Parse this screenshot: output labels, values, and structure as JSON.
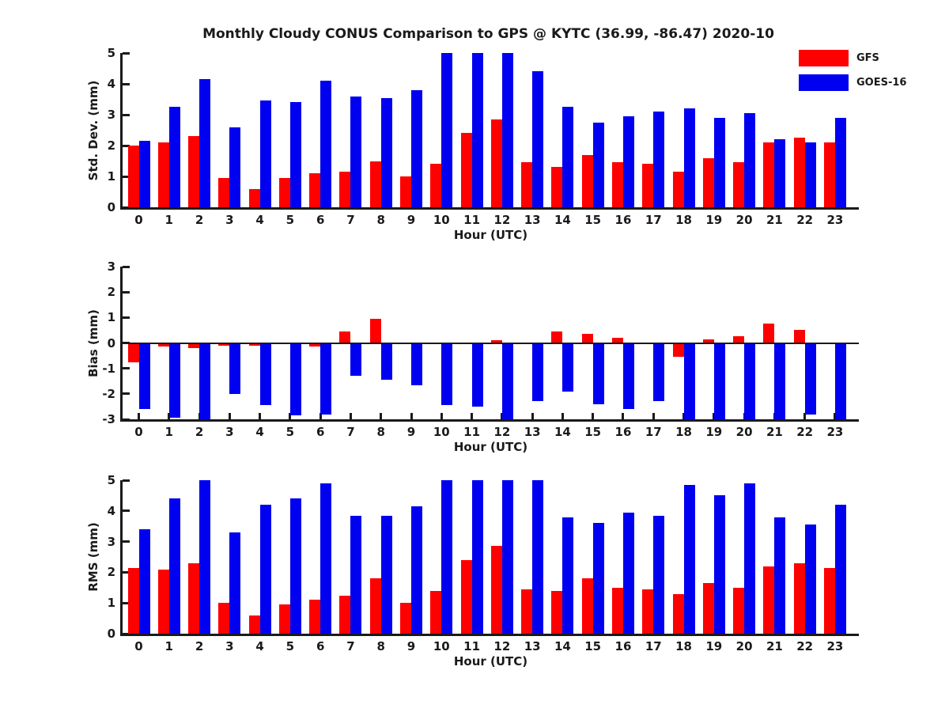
{
  "title": "Monthly Cloudy CONUS Comparison to GPS @ KYTC (36.99, -86.47) 2020-10",
  "colors": {
    "gfs": "#ff0000",
    "goes16": "#0000f0",
    "axis": "#1a1a1a"
  },
  "legend": {
    "items": [
      {
        "label": "GFS",
        "color": "#ff0000"
      },
      {
        "label": "GOES-16",
        "color": "#0000f0"
      }
    ]
  },
  "chart_data": [
    {
      "type": "bar",
      "title": "",
      "xlabel": "Hour (UTC)",
      "ylabel": "Std. Dev. (mm)",
      "ylim": [
        0,
        5
      ],
      "yticks": [
        0,
        1,
        2,
        3,
        4,
        5
      ],
      "grid": false,
      "legend_position": "upper-right-outside",
      "categories": [
        "0",
        "1",
        "2",
        "3",
        "4",
        "5",
        "6",
        "7",
        "8",
        "9",
        "10",
        "11",
        "12",
        "13",
        "14",
        "15",
        "16",
        "17",
        "18",
        "19",
        "20",
        "21",
        "22",
        "23"
      ],
      "series": [
        {
          "name": "GFS",
          "values": [
            2.0,
            2.1,
            2.3,
            0.95,
            0.6,
            0.95,
            1.1,
            1.15,
            1.5,
            1.0,
            1.4,
            2.4,
            2.85,
            1.45,
            1.3,
            1.7,
            1.45,
            1.4,
            1.15,
            1.6,
            1.45,
            2.1,
            2.25,
            2.1
          ]
        },
        {
          "name": "GOES-16",
          "values": [
            2.15,
            3.25,
            4.15,
            2.6,
            3.45,
            3.4,
            4.1,
            3.6,
            3.55,
            3.8,
            5.0,
            5.0,
            5.0,
            4.4,
            3.25,
            2.75,
            2.95,
            3.1,
            3.2,
            2.9,
            3.05,
            2.2,
            2.1,
            2.9
          ]
        }
      ]
    },
    {
      "type": "bar",
      "title": "",
      "xlabel": "Hour (UTC)",
      "ylabel": "Bias (mm)",
      "ylim": [
        -3,
        3
      ],
      "yticks": [
        3,
        2,
        1,
        0,
        -1,
        -2,
        -3
      ],
      "grid": false,
      "categories": [
        "0",
        "1",
        "2",
        "3",
        "4",
        "5",
        "6",
        "7",
        "8",
        "9",
        "10",
        "11",
        "12",
        "13",
        "14",
        "15",
        "16",
        "17",
        "18",
        "19",
        "20",
        "21",
        "22",
        "23"
      ],
      "series": [
        {
          "name": "GFS",
          "values": [
            -0.75,
            -0.15,
            -0.2,
            -0.1,
            -0.1,
            0,
            -0.15,
            0.45,
            0.95,
            0,
            -0.05,
            0,
            0.1,
            0,
            0.45,
            0.35,
            0.2,
            -0.05,
            -0.55,
            0.15,
            0.25,
            0.75,
            0.5,
            -0.05
          ]
        },
        {
          "name": "GOES-16",
          "values": [
            -2.6,
            -2.95,
            -3.0,
            -2.0,
            -2.45,
            -2.85,
            -2.8,
            -1.3,
            -1.45,
            -1.65,
            -2.45,
            -2.5,
            -3.0,
            -2.3,
            -1.9,
            -2.4,
            -2.6,
            -2.3,
            -3.0,
            -3.0,
            -3.0,
            -3.0,
            -2.8,
            -3.0
          ]
        }
      ]
    },
    {
      "type": "bar",
      "title": "",
      "xlabel": "Hour (UTC)",
      "ylabel": "RMS (mm)",
      "ylim": [
        0,
        5
      ],
      "yticks": [
        0,
        1,
        2,
        3,
        4,
        5
      ],
      "grid": false,
      "categories": [
        "0",
        "1",
        "2",
        "3",
        "4",
        "5",
        "6",
        "7",
        "8",
        "9",
        "10",
        "11",
        "12",
        "13",
        "14",
        "15",
        "16",
        "17",
        "18",
        "19",
        "20",
        "21",
        "22",
        "23"
      ],
      "series": [
        {
          "name": "GFS",
          "values": [
            2.15,
            2.1,
            2.3,
            1.0,
            0.6,
            0.95,
            1.1,
            1.25,
            1.8,
            1.0,
            1.4,
            2.4,
            2.85,
            1.45,
            1.4,
            1.8,
            1.5,
            1.45,
            1.3,
            1.65,
            1.5,
            2.2,
            2.3,
            2.15
          ]
        },
        {
          "name": "GOES-16",
          "values": [
            3.4,
            4.4,
            5.0,
            3.3,
            4.2,
            4.4,
            4.9,
            3.85,
            3.85,
            4.15,
            5.0,
            5.0,
            5.0,
            5.0,
            3.8,
            3.6,
            3.95,
            3.85,
            4.85,
            4.5,
            4.9,
            3.8,
            3.55,
            4.2
          ]
        }
      ]
    }
  ]
}
